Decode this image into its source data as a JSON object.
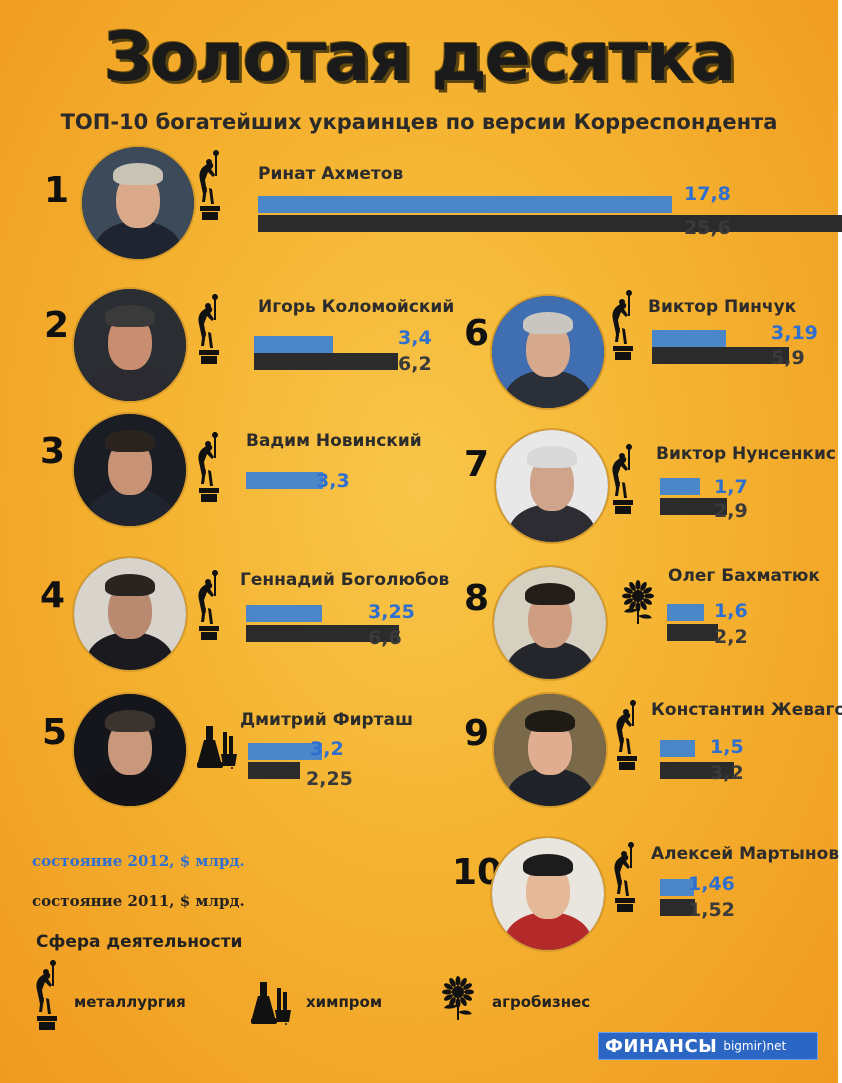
{
  "title": "Золотая десятка",
  "subtitle": "ТОП-10 богатейших украинцев по версии Корреспондента",
  "chart_data": {
    "type": "bar",
    "title": "Золотая десятка",
    "subtitle": "ТОП-10 богатейших украинцев по версии Корреспондента",
    "series": [
      {
        "name": "состояние 2012, $ млрд.",
        "color": "#4a86c8"
      },
      {
        "name": "состояние 2011, $ млрд.",
        "color": "#2b2b2b"
      }
    ],
    "people": [
      {
        "rank": "1",
        "name": "Ринат Ахметов",
        "v2012": 17.8,
        "v2012_label": "17,8",
        "v2011": 25.6,
        "v2011_label": "25,6",
        "sector": "металлургия"
      },
      {
        "rank": "2",
        "name": "Игорь Коломойский",
        "v2012": 3.4,
        "v2012_label": "3,4",
        "v2011": 6.2,
        "v2011_label": "6,2",
        "sector": "металлургия"
      },
      {
        "rank": "3",
        "name": "Вадим Новинский",
        "v2012": 3.3,
        "v2012_label": "3,3",
        "v2011": null,
        "v2011_label": "",
        "sector": "металлургия"
      },
      {
        "rank": "4",
        "name": "Геннадий Боголюбов",
        "v2012": 3.25,
        "v2012_label": "3,25",
        "v2011": 6.6,
        "v2011_label": "6,6",
        "sector": "металлургия"
      },
      {
        "rank": "5",
        "name": "Дмитрий Фирташ",
        "v2012": 3.2,
        "v2012_label": "3,2",
        "v2011": 2.25,
        "v2011_label": "2,25",
        "sector": "химпром"
      },
      {
        "rank": "6",
        "name": "Виктор Пинчук",
        "v2012": 3.19,
        "v2012_label": "3,19",
        "v2011": 5.9,
        "v2011_label": "5,9",
        "sector": "металлургия"
      },
      {
        "rank": "7",
        "name": "Виктор Нунсенкис",
        "v2012": 1.7,
        "v2012_label": "1,7",
        "v2011": 2.9,
        "v2011_label": "2,9",
        "sector": "металлургия"
      },
      {
        "rank": "8",
        "name": "Олег Бахматюк",
        "v2012": 1.6,
        "v2012_label": "1,6",
        "v2011": 2.2,
        "v2011_label": "2,2",
        "sector": "агробизнес"
      },
      {
        "rank": "9",
        "name": "Константин Жеваго",
        "v2012": 1.5,
        "v2012_label": "1,5",
        "v2011": 3.2,
        "v2011_label": "3,2",
        "sector": "металлургия"
      },
      {
        "rank": "10",
        "name": "Алексей Мартынов",
        "v2012": 1.46,
        "v2012_label": "1,46",
        "v2011": 1.52,
        "v2011_label": "1,52",
        "sector": "металлургия"
      }
    ]
  },
  "legend": {
    "label_2012": "состояние 2012, $ млрд.",
    "label_2011": "состояние 2011, $ млрд.",
    "sphere_title": "Сфера деятельности",
    "sectors": [
      {
        "icon": "metallurgy-icon",
        "label": "металлургия"
      },
      {
        "icon": "chemistry-icon",
        "label": "химпром"
      },
      {
        "icon": "sunflower-icon",
        "label": "агробизнес"
      }
    ]
  },
  "colors": {
    "accent_2012": "#4a86c8",
    "accent_2011": "#2b2b2b",
    "value_2012_text": "#2f6fd0",
    "background": "#f5b331"
  },
  "logo": {
    "brand": "ФИНАНСЫ",
    "site": "bigmir)net"
  }
}
